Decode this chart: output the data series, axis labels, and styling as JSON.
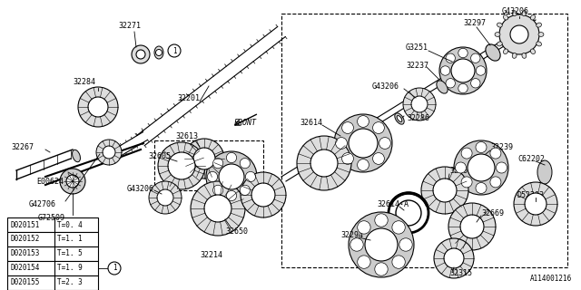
{
  "bg_color": "#ffffff",
  "line_color": "#000000",
  "table_data": [
    [
      "D020151",
      "T=0. 4"
    ],
    [
      "D020152",
      "T=1. 1"
    ],
    [
      "D020153",
      "T=1. 5"
    ],
    [
      "D020154",
      "T=1. 9"
    ],
    [
      "D020155",
      "T=2. 3"
    ]
  ],
  "diagram_code": "A114001216"
}
